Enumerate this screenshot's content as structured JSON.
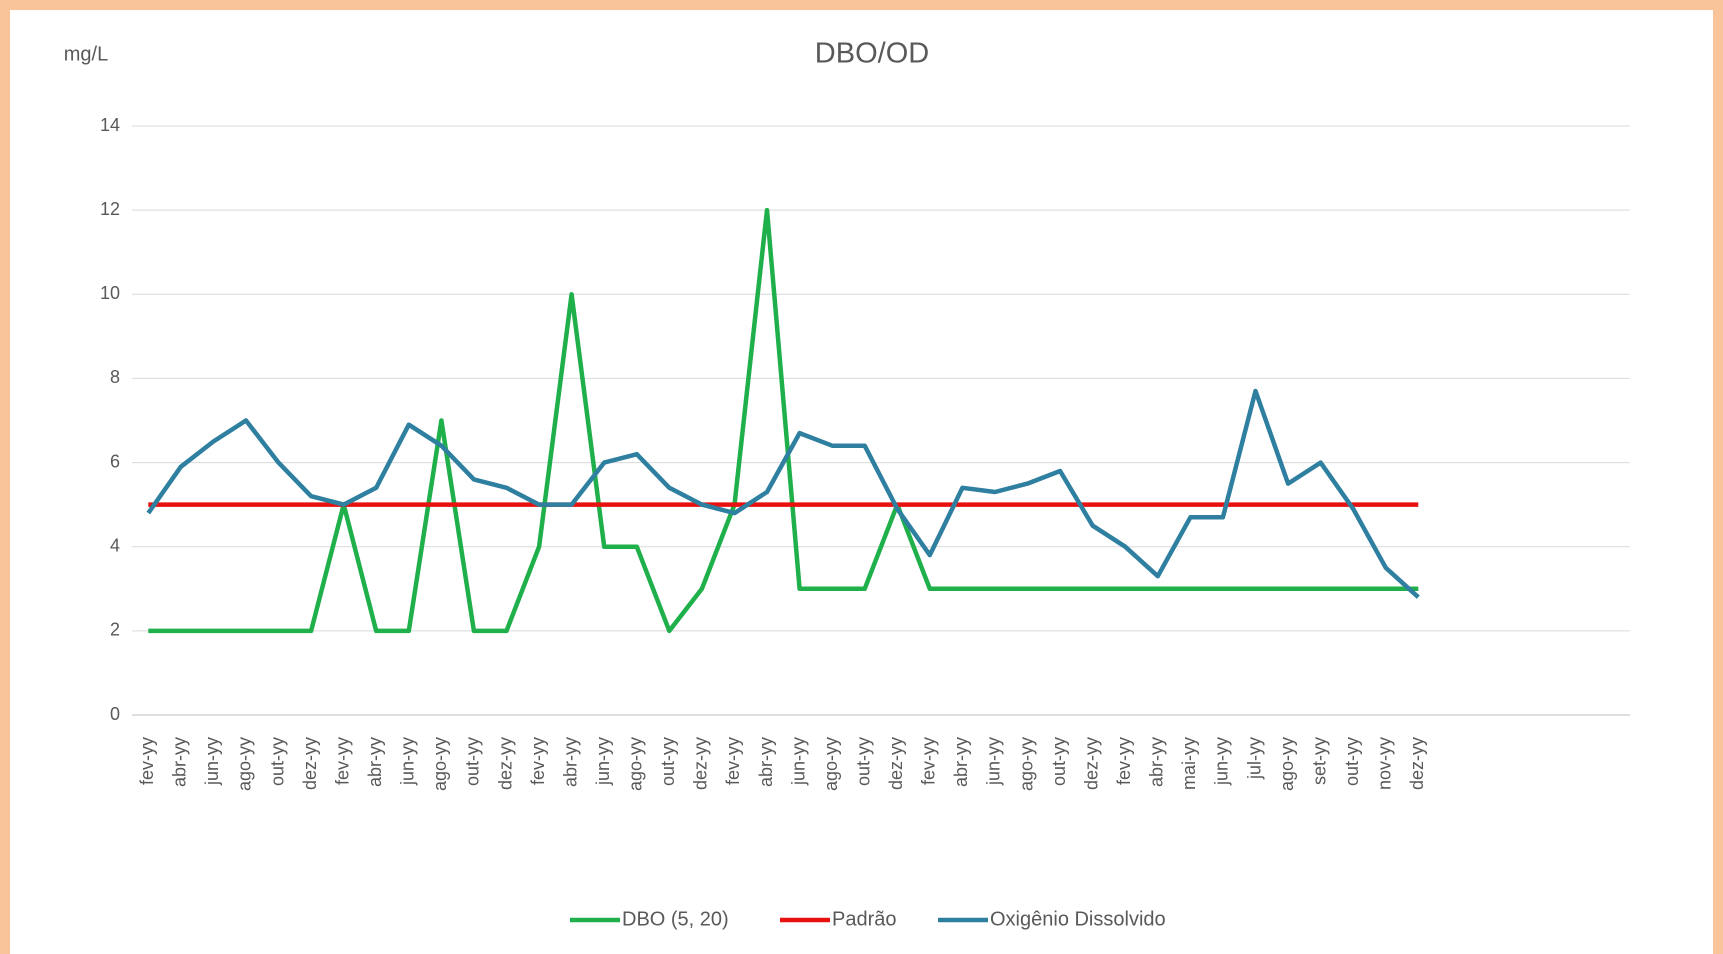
{
  "chart_data": {
    "type": "line",
    "title": "DBO/OD",
    "y_label": "mg/L",
    "categories": [
      "fev-yy",
      "abr-yy",
      "jun-yy",
      "ago-yy",
      "out-yy",
      "dez-yy",
      "fev-yy",
      "abr-yy",
      "jun-yy",
      "ago-yy",
      "out-yy",
      "dez-yy",
      "fev-yy",
      "abr-yy",
      "jun-yy",
      "ago-yy",
      "out-yy",
      "dez-yy",
      "fev-yy",
      "abr-yy",
      "jun-yy",
      "ago-yy",
      "out-yy",
      "dez-yy",
      "fev-yy",
      "abr-yy",
      "jun-yy",
      "ago-yy",
      "out-yy",
      "dez-yy",
      "fev-yy",
      "abr-yy",
      "mai-yy",
      "jun-yy",
      "jul-yy",
      "ago-yy",
      "set-yy",
      "out-yy",
      "nov-yy",
      "dez-yy",
      null,
      null,
      null,
      null,
      null,
      null
    ],
    "series": [
      {
        "name": "DBO (5, 20)",
        "color": "#1fb04b",
        "values": [
          2,
          2,
          2,
          2,
          2,
          2,
          5,
          2,
          2,
          7,
          2,
          2,
          4,
          10,
          4,
          4,
          2,
          3,
          5,
          12,
          3,
          3,
          3,
          5,
          3,
          3,
          3,
          3,
          3,
          3,
          3,
          3,
          3,
          3,
          3,
          3,
          3,
          3,
          3,
          3,
          null,
          null,
          null,
          null,
          null,
          null
        ]
      },
      {
        "name": "Padrão",
        "color": "#e8110f",
        "values": [
          5,
          5,
          5,
          5,
          5,
          5,
          5,
          5,
          5,
          5,
          5,
          5,
          5,
          5,
          5,
          5,
          5,
          5,
          5,
          5,
          5,
          5,
          5,
          5,
          5,
          5,
          5,
          5,
          5,
          5,
          5,
          5,
          5,
          5,
          5,
          5,
          5,
          5,
          5,
          5,
          null,
          null,
          null,
          null,
          null,
          null
        ]
      },
      {
        "name": "Oxigênio Dissolvido",
        "color": "#2e7fa0",
        "values": [
          4.8,
          5.9,
          6.5,
          7.0,
          6.0,
          5.2,
          5.0,
          5.4,
          6.9,
          6.4,
          5.6,
          5.4,
          5.0,
          5.0,
          6.0,
          6.2,
          5.4,
          5.0,
          4.8,
          5.3,
          6.7,
          6.4,
          6.4,
          4.9,
          3.8,
          5.4,
          5.3,
          5.5,
          5.8,
          4.5,
          4.0,
          3.3,
          4.7,
          4.7,
          7.7,
          5.5,
          6.0,
          4.9,
          3.5,
          2.8,
          null,
          null,
          null,
          null,
          null,
          null
        ]
      }
    ],
    "ylim": [
      0,
      14
    ],
    "yticks": [
      0,
      2,
      4,
      6,
      8,
      10,
      12,
      14
    ],
    "grid": true,
    "legend": "bottom"
  }
}
